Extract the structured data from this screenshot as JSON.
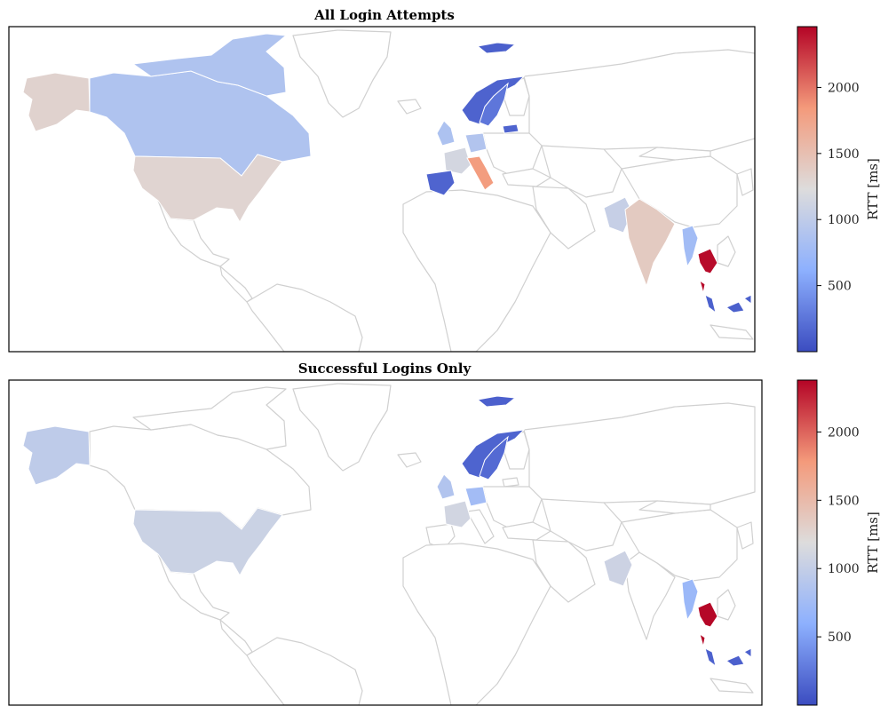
{
  "colors": {
    "low": "#3b4cc0",
    "mid": "#dddcdc",
    "high": "#b40426",
    "unvisited": "#ffffff",
    "border": "#d0d0d0",
    "frame": "#000000"
  },
  "colorbar_ticks": [
    "500",
    "1000",
    "1500",
    "2000"
  ],
  "colorbar_label": "RTT [ms]",
  "maps": [
    {
      "title": "All Login Attempts",
      "vmax": 2460,
      "countries": [
        {
          "name": "Alaska",
          "rtt": 1320
        },
        {
          "name": "Canada",
          "rtt": 880
        },
        {
          "name": "Canadian Arctic Islands",
          "rtt": 880
        },
        {
          "name": "United States",
          "rtt": 1300
        },
        {
          "name": "Svalbard",
          "rtt": 120
        },
        {
          "name": "Norway",
          "rtt": 140
        },
        {
          "name": "Sweden",
          "rtt": 260
        },
        {
          "name": "Latvia",
          "rtt": 150
        },
        {
          "name": "United Kingdom",
          "rtt": 860
        },
        {
          "name": "Germany",
          "rtt": 900
        },
        {
          "name": "France",
          "rtt": 1150
        },
        {
          "name": "Spain",
          "rtt": 150
        },
        {
          "name": "Italy",
          "rtt": 1820
        },
        {
          "name": "Pakistan",
          "rtt": 1050
        },
        {
          "name": "India",
          "rtt": 1400
        },
        {
          "name": "Myanmar",
          "rtt": 780
        },
        {
          "name": "Thailand",
          "rtt": 2430
        },
        {
          "name": "Malaysia",
          "rtt": 130
        },
        {
          "name": "Southern Thailand",
          "rtt": 2430
        },
        {
          "name": "Borneo",
          "rtt": 120
        },
        {
          "name": "Philippines",
          "rtt": 130
        }
      ]
    },
    {
      "title": "Successful Logins Only",
      "vmax": 2380,
      "countries": [
        {
          "name": "Alaska",
          "rtt": 960
        },
        {
          "name": "United States",
          "rtt": 1050
        },
        {
          "name": "Svalbard",
          "rtt": 120
        },
        {
          "name": "Norway",
          "rtt": 140
        },
        {
          "name": "Sweden",
          "rtt": 180
        },
        {
          "name": "United Kingdom",
          "rtt": 870
        },
        {
          "name": "Germany",
          "rtt": 760
        },
        {
          "name": "France",
          "rtt": 1100
        },
        {
          "name": "Pakistan",
          "rtt": 1060
        },
        {
          "name": "Myanmar",
          "rtt": 700
        },
        {
          "name": "Thailand",
          "rtt": 2370
        },
        {
          "name": "Malaysia",
          "rtt": 130
        },
        {
          "name": "Southern Thailand",
          "rtt": 2370
        },
        {
          "name": "Borneo",
          "rtt": 120
        },
        {
          "name": "Philippines",
          "rtt": 130
        }
      ]
    }
  ]
}
